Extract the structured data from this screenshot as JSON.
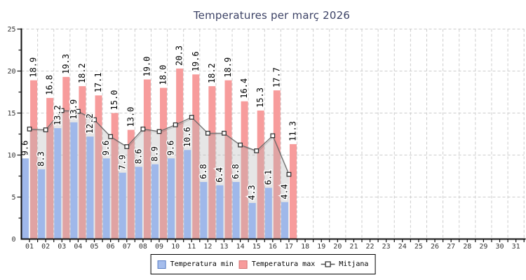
{
  "title": "Temperatures per març 2026",
  "legend": {
    "min_label": "Temperatura min",
    "max_label": "Temperatura max",
    "mitjana_label": "Mitjana"
  },
  "colors": {
    "bar_min": "#9fb8ea",
    "bar_max": "#f79c9c",
    "bar_min_border": "#5b7fc4",
    "bar_max_border": "#d57575",
    "mean_line": "#6a6a6a",
    "mean_area": "rgba(180,180,180,0.33)",
    "marker_fill": "#ffffff",
    "marker_stroke": "#333333",
    "grid": "#cccccc",
    "axis": "#111111",
    "tick_text": "#333333",
    "point_label_text": "#000000",
    "title_text": "#3d4366",
    "background": "#ffffff"
  },
  "chart_data": {
    "type": "bar",
    "title": "Temperatures per març 2026",
    "xlabel": "",
    "ylabel": "",
    "ylim": [
      0,
      25
    ],
    "yticks": [
      0,
      5,
      10,
      15,
      20,
      25
    ],
    "y_minor_tick_step": 2.5,
    "grid": true,
    "legend_position": "bottom",
    "categories": [
      "01",
      "02",
      "03",
      "04",
      "05",
      "06",
      "07",
      "08",
      "09",
      "10",
      "11",
      "12",
      "13",
      "14",
      "15",
      "16",
      "17",
      "18",
      "19",
      "20",
      "21",
      "22",
      "23",
      "24",
      "25",
      "26",
      "27",
      "28",
      "29",
      "30",
      "31"
    ],
    "series": [
      {
        "name": "Temperatura min",
        "type": "bar",
        "values": [
          9.6,
          8.3,
          13.2,
          13.9,
          12.2,
          9.6,
          7.9,
          8.6,
          8.9,
          9.6,
          10.6,
          6.8,
          6.4,
          6.8,
          4.3,
          6.1,
          4.4
        ]
      },
      {
        "name": "Temperatura max",
        "type": "bar",
        "values": [
          18.9,
          16.8,
          19.3,
          18.2,
          17.1,
          15.0,
          13.0,
          19.0,
          18.0,
          20.3,
          19.6,
          18.2,
          18.9,
          16.4,
          15.3,
          17.7,
          11.3
        ]
      },
      {
        "name": "Mitjana",
        "type": "line-area",
        "values": [
          13.1,
          13.0,
          15.3,
          15.2,
          14.2,
          12.2,
          11.0,
          13.1,
          12.8,
          13.6,
          14.5,
          12.6,
          12.6,
          11.2,
          10.5,
          12.3,
          7.7
        ]
      }
    ],
    "point_labels": "one-decimal, rotated 90deg, above bar tops, on min and max series only"
  }
}
